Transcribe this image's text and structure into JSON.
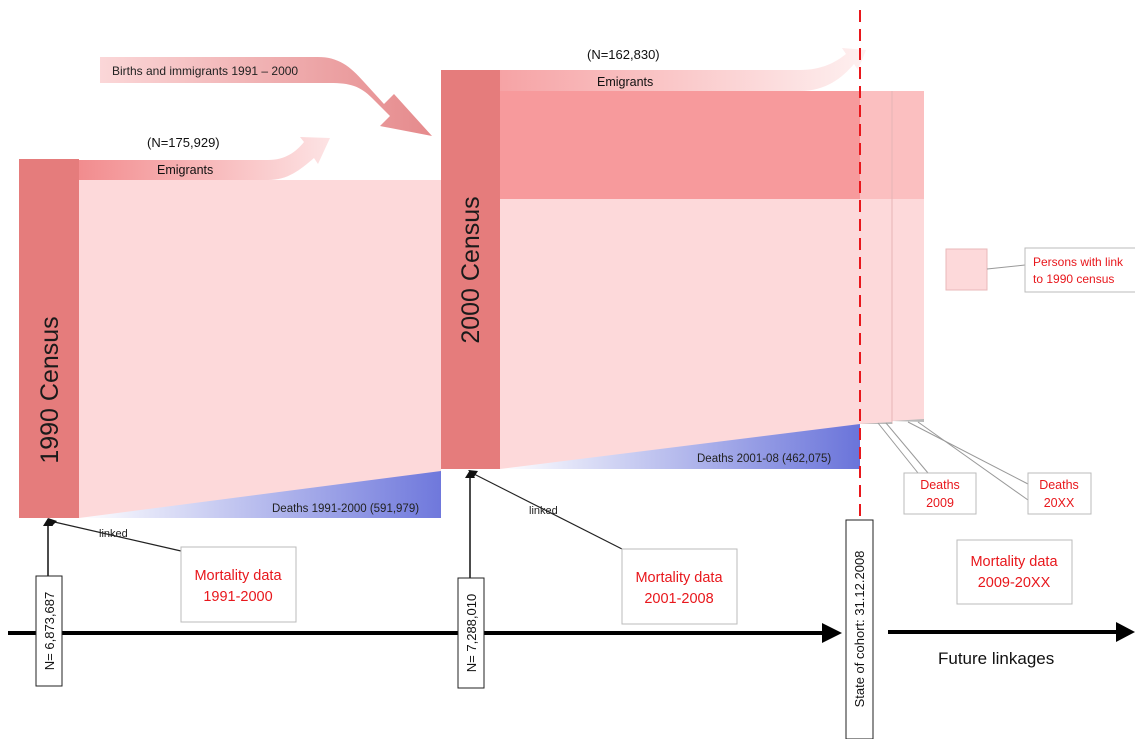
{
  "census_1990": {
    "label": "1990 Census",
    "population": "N= 6,873,687",
    "emigrants_count": "(N=175,929)",
    "emigrants_label": "Emigrants",
    "deaths_label": "Deaths 1991-2000 (591,979)",
    "linked_label": "linked",
    "mortality_line1": "Mortality data",
    "mortality_line2": "1991-2000"
  },
  "births_immigrants_label": "Births and immigrants 1991 – 2000",
  "census_2000": {
    "label": "2000 Census",
    "population": "N= 7,288,010",
    "emigrants_count": "(N=162,830)",
    "emigrants_label": "Emigrants",
    "deaths_label": "Deaths 2001-08 (462,075)",
    "linked_label": "linked",
    "mortality_line1": "Mortality data",
    "mortality_line2": "2001-2008"
  },
  "cohort_state_label": "State of cohort: 31.12.2008",
  "deaths_2009": {
    "line1": "Deaths",
    "line2": "2009"
  },
  "deaths_20xx": {
    "line1": "Deaths",
    "line2": "20XX"
  },
  "mortality_future": {
    "line1": "Mortality data",
    "line2": "2009-20XX"
  },
  "legend": {
    "line1": "Persons with link",
    "line2": "to 1990 census"
  },
  "future_linkages_label": "Future linkages",
  "colors": {
    "census_bar": "#e57c7c",
    "flow_linked": "#fdd9da",
    "flow_unlinked": "#f79a9c",
    "deaths": "#6f78dc",
    "accent_red": "#e8171c"
  }
}
